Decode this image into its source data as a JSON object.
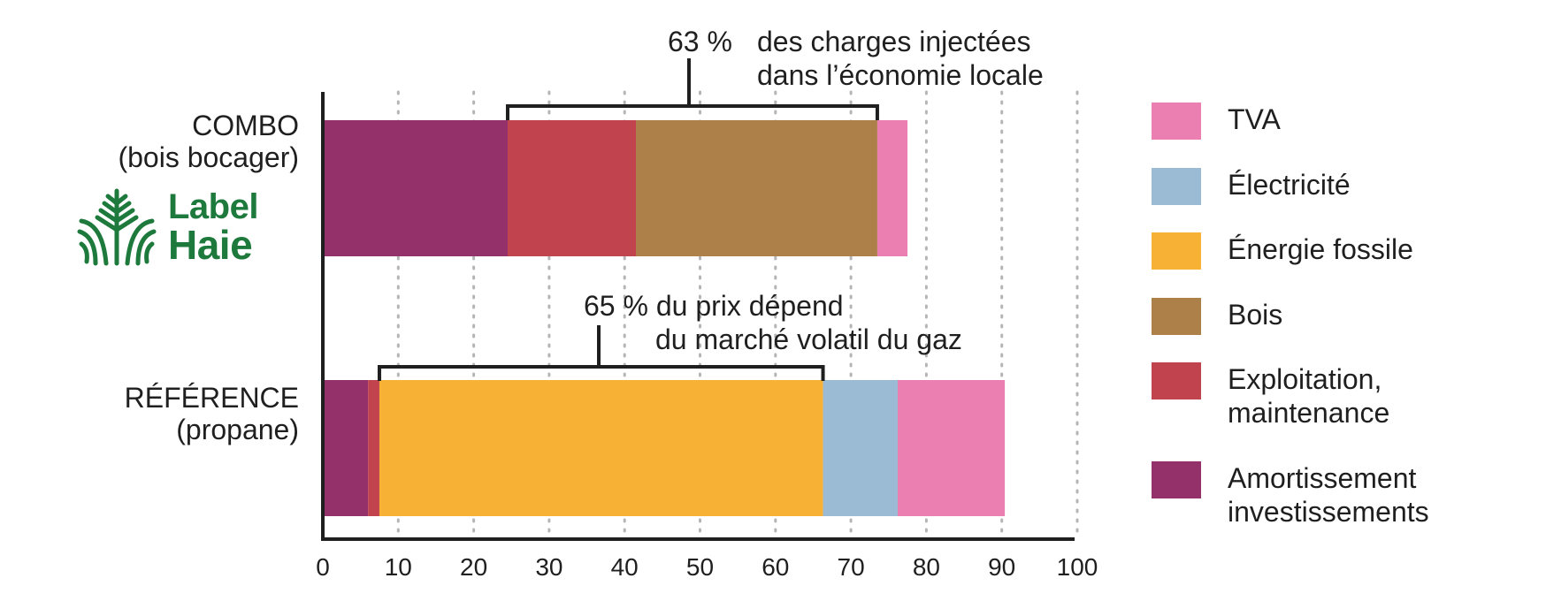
{
  "chart_data": {
    "type": "bar",
    "orientation": "horizontal",
    "stacked": true,
    "categories": [
      "COMBO\n(bois bocager)",
      "RÉFÉRENCE\n(propane)"
    ],
    "series": [
      {
        "name": "Amortissement investissements",
        "values": [
          24.5,
          6
        ],
        "color": "#94306a"
      },
      {
        "name": "Exploitation, maintenance",
        "values": [
          17,
          1.5
        ],
        "color": "#c0434d"
      },
      {
        "name": "Bois",
        "values": [
          32,
          0
        ],
        "color": "#ad804a"
      },
      {
        "name": "Énergie fossile",
        "values": [
          0,
          58.8
        ],
        "color": "#f7b135"
      },
      {
        "name": "Électricité",
        "values": [
          0,
          9.9
        ],
        "color": "#9bbad4"
      },
      {
        "name": "TVA",
        "values": [
          4,
          14.2
        ],
        "color": "#ec7fb2"
      }
    ],
    "xticks": [
      "0",
      "10",
      "20",
      "30",
      "40",
      "50",
      "60",
      "70",
      "80",
      "90",
      "100"
    ],
    "xlim": [
      0,
      100
    ],
    "grid": "vertical dotted",
    "legend_position": "right",
    "annotations": [
      {
        "value_text": "63 %",
        "text": "des charges injectées\ndans l’économie locale",
        "category": 0,
        "range": [
          24.5,
          73.5
        ]
      },
      {
        "text": "65 % du prix dépend\n   du marché volatil du gaz",
        "category": 1,
        "range": [
          7.5,
          66.3
        ]
      }
    ]
  },
  "labels": {
    "combo": "COMBO",
    "combo_sub": "(bois bocager)",
    "reference": "RÉFÉRENCE",
    "reference_sub": "(propane)",
    "logo_line1": "Label",
    "logo_line2": "Haie",
    "annot1_pct": "63 %",
    "annot1_line1": "des charges injectées",
    "annot1_line2": "dans l’économie locale",
    "annot2_line1": "65 % du prix dépend",
    "annot2_line2": "du marché volatil du gaz"
  },
  "legend": [
    {
      "label": "TVA",
      "color": "#ec7fb2"
    },
    {
      "label": "Électricité",
      "color": "#9bbad4"
    },
    {
      "label": "Énergie fossile",
      "color": "#f7b135"
    },
    {
      "label": "Bois",
      "color": "#ad804a"
    },
    {
      "label": "Exploitation,\nmaintenance",
      "color": "#c0434d"
    },
    {
      "label": "Amortissement\ninvestissements",
      "color": "#94306a"
    }
  ],
  "colors": {
    "logo": "#1d7a3c",
    "axis": "#1f1f1f",
    "grid": "#b5b5b5"
  }
}
